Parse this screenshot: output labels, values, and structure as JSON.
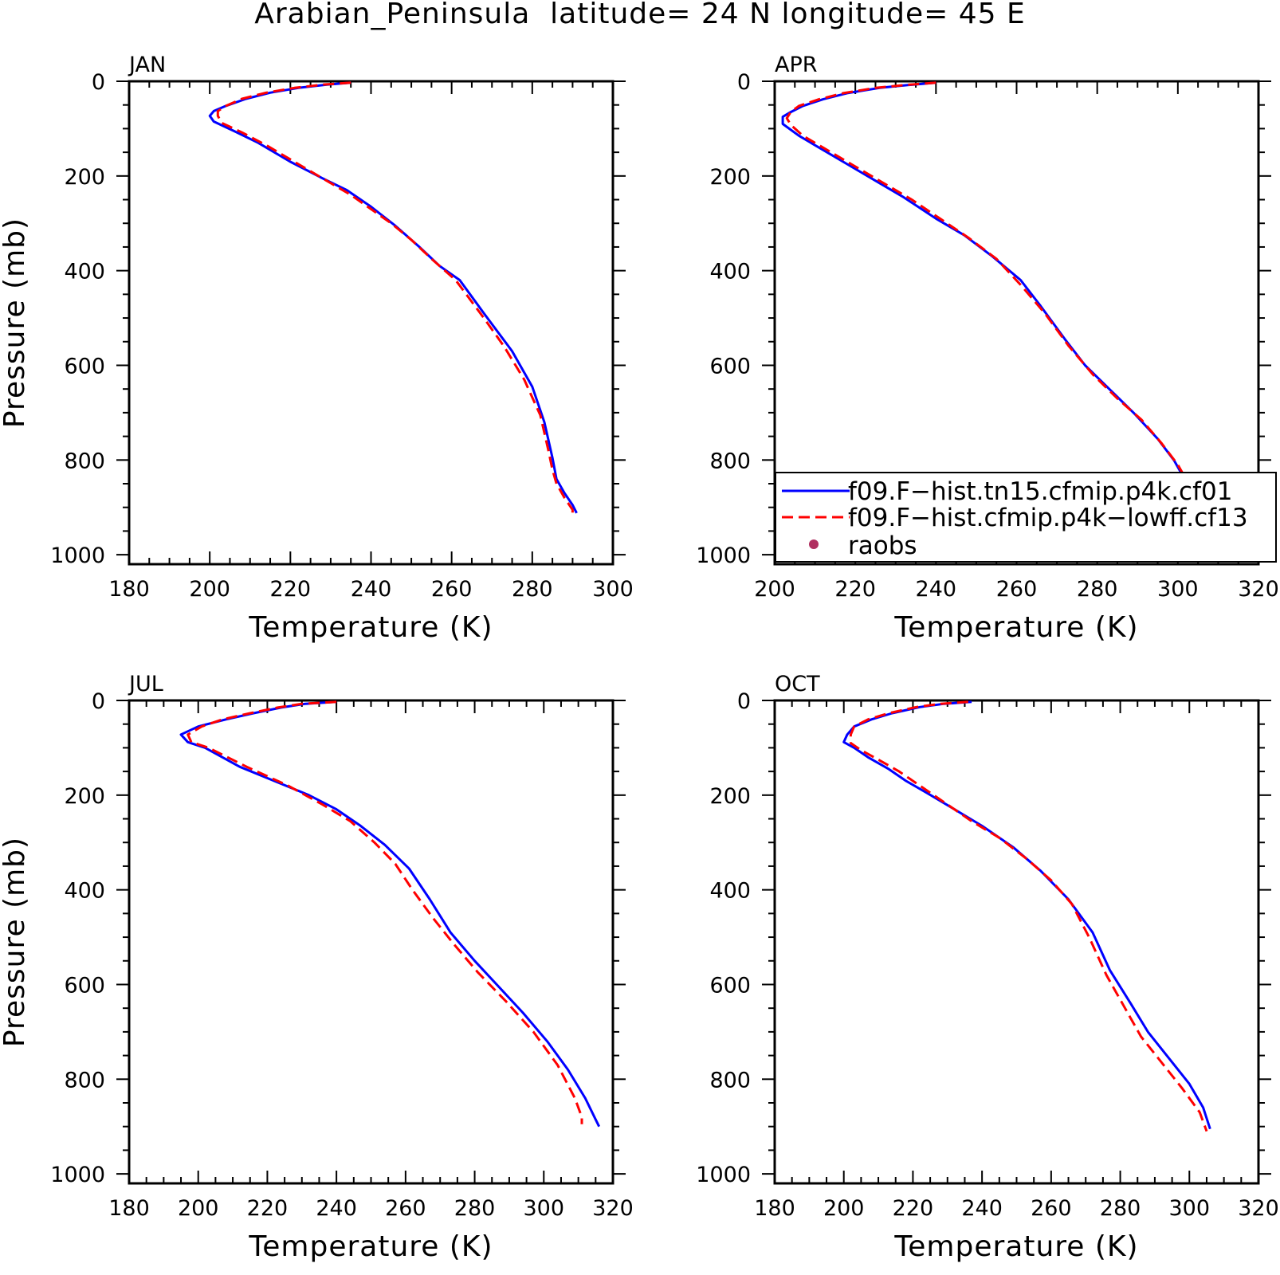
{
  "figure": {
    "title": "Arabian_Peninsula  latitude= 24 N longitude= 45 E",
    "colors": {
      "axes": "#000000",
      "series1": "#0000ff",
      "series2": "#ff0000",
      "raobs": "#b03060"
    }
  },
  "legend": {
    "placement": "inside APR panel, lower-right",
    "entries": [
      {
        "label": "f09.F−hist.tn15.cfmip.p4k.cf01",
        "style": "solid",
        "color": "#0000ff"
      },
      {
        "label": "f09.F−hist.cfmip.p4k−lowff.cf13",
        "style": "dashed",
        "color": "#ff0000"
      },
      {
        "label": "raobs",
        "style": "marker",
        "color": "#b03060"
      }
    ]
  },
  "chart_data": [
    {
      "type": "line",
      "panel_label": "JAN",
      "xlabel": "Temperature (K)",
      "ylabel": "Pressure (mb)",
      "xlim": [
        180,
        300
      ],
      "ylim": [
        1020,
        0
      ],
      "xticks": [
        180,
        200,
        220,
        240,
        260,
        280,
        300
      ],
      "yticks": [
        0,
        200,
        400,
        600,
        800,
        1000
      ],
      "grid": false,
      "series": [
        {
          "name": "f09.F−hist.tn15.cfmip.p4k.cf01",
          "style": "solid",
          "color": "#0000ff",
          "points": [
            [
              235,
              3
            ],
            [
              229,
              7
            ],
            [
              222,
              14
            ],
            [
              215,
              24
            ],
            [
              209,
              37
            ],
            [
              204,
              52
            ],
            [
              201,
              63
            ],
            [
              200,
              73
            ],
            [
              201,
              85
            ],
            [
              206,
              105
            ],
            [
              212,
              130
            ],
            [
              220,
              170
            ],
            [
              228,
              205
            ],
            [
              234,
              230
            ],
            [
              240,
              265
            ],
            [
              246,
              305
            ],
            [
              252,
              350
            ],
            [
              257,
              390
            ],
            [
              262,
              420
            ],
            [
              268,
              490
            ],
            [
              275,
              570
            ],
            [
              280,
              645
            ],
            [
              283,
              720
            ],
            [
              285,
              795
            ],
            [
              286,
              840
            ],
            [
              288,
              870
            ],
            [
              290,
              895
            ],
            [
              291,
              912
            ]
          ]
        },
        {
          "name": "f09.F−hist.cfmip.p4k−lowff.cf13",
          "style": "dashed",
          "color": "#ff0000",
          "points": [
            [
              235,
              3
            ],
            [
              228,
              7
            ],
            [
              221,
              14
            ],
            [
              214,
              24
            ],
            [
              208,
              37
            ],
            [
              204,
              52
            ],
            [
              202,
              63
            ],
            [
              202,
              73
            ],
            [
              203,
              88
            ],
            [
              208,
              108
            ],
            [
              214,
              135
            ],
            [
              222,
              175
            ],
            [
              229,
              210
            ],
            [
              235,
              240
            ],
            [
              240,
              270
            ],
            [
              245,
              300
            ],
            [
              250,
              335
            ],
            [
              255,
              375
            ],
            [
              261,
              420
            ],
            [
              268,
              500
            ],
            [
              273,
              560
            ],
            [
              278,
              630
            ],
            [
              282,
              705
            ],
            [
              284,
              780
            ],
            [
              285,
              820
            ],
            [
              286,
              850
            ],
            [
              288,
              880
            ],
            [
              290,
              905
            ],
            [
              290,
              915
            ]
          ]
        }
      ]
    },
    {
      "type": "line",
      "panel_label": "APR",
      "xlabel": "Temperature (K)",
      "ylabel": "",
      "xlim": [
        200,
        320
      ],
      "ylim": [
        1020,
        0
      ],
      "xticks": [
        200,
        220,
        240,
        260,
        280,
        300,
        320
      ],
      "yticks": [
        0,
        200,
        400,
        600,
        800,
        1000
      ],
      "grid": false,
      "series": [
        {
          "name": "f09.F−hist.tn15.cfmip.p4k.cf01",
          "style": "solid",
          "color": "#0000ff",
          "points": [
            [
              240,
              3
            ],
            [
              233,
              8
            ],
            [
              226,
              14
            ],
            [
              218,
              25
            ],
            [
              212,
              38
            ],
            [
              207,
              52
            ],
            [
              204,
              65
            ],
            [
              202,
              75
            ],
            [
              202,
              90
            ],
            [
              206,
              115
            ],
            [
              211,
              140
            ],
            [
              218,
              175
            ],
            [
              225,
              210
            ],
            [
              232,
              245
            ],
            [
              240,
              290
            ],
            [
              247,
              325
            ],
            [
              254,
              370
            ],
            [
              261,
              420
            ],
            [
              266,
              475
            ],
            [
              272,
              545
            ],
            [
              277,
              600
            ],
            [
              283,
              650
            ],
            [
              289,
              700
            ],
            [
              295,
              755
            ],
            [
              299,
              800
            ],
            [
              302,
              845
            ],
            [
              305,
              880
            ],
            [
              307,
              905
            ]
          ]
        },
        {
          "name": "f09.F−hist.cfmip.p4k−lowff.cf13",
          "style": "dashed",
          "color": "#ff0000",
          "points": [
            [
              240,
              3
            ],
            [
              232,
              8
            ],
            [
              225,
              14
            ],
            [
              217,
              25
            ],
            [
              211,
              38
            ],
            [
              206,
              52
            ],
            [
              204,
              65
            ],
            [
              203,
              78
            ],
            [
              204,
              92
            ],
            [
              207,
              115
            ],
            [
              212,
              140
            ],
            [
              219,
              175
            ],
            [
              226,
              210
            ],
            [
              234,
              250
            ],
            [
              241,
              290
            ],
            [
              248,
              330
            ],
            [
              255,
              375
            ],
            [
              261,
              430
            ],
            [
              267,
              490
            ],
            [
              273,
              560
            ],
            [
              279,
              620
            ],
            [
              285,
              670
            ],
            [
              291,
              715
            ],
            [
              296,
              765
            ],
            [
              300,
              810
            ],
            [
              303,
              855
            ],
            [
              305,
              885
            ],
            [
              306,
              900
            ]
          ]
        }
      ]
    },
    {
      "type": "line",
      "panel_label": "JUL",
      "xlabel": "Temperature (K)",
      "ylabel": "Pressure (mb)",
      "xlim": [
        180,
        320
      ],
      "ylim": [
        1020,
        0
      ],
      "xticks": [
        180,
        200,
        220,
        240,
        260,
        280,
        300,
        320
      ],
      "yticks": [
        0,
        200,
        400,
        600,
        800,
        1000
      ],
      "grid": false,
      "series": [
        {
          "name": "f09.F−hist.tn15.cfmip.p4k.cf01",
          "style": "solid",
          "color": "#0000ff",
          "points": [
            [
              240,
              3
            ],
            [
              231,
              7
            ],
            [
              224,
              15
            ],
            [
              216,
              27
            ],
            [
              208,
              40
            ],
            [
              200,
              55
            ],
            [
              195,
              72
            ],
            [
              197,
              88
            ],
            [
              202,
              100
            ],
            [
              212,
              140
            ],
            [
              222,
              170
            ],
            [
              232,
              200
            ],
            [
              240,
              230
            ],
            [
              247,
              265
            ],
            [
              254,
              305
            ],
            [
              261,
              355
            ],
            [
              267,
              420
            ],
            [
              273,
              490
            ],
            [
              280,
              550
            ],
            [
              287,
              605
            ],
            [
              294,
              660
            ],
            [
              301,
              720
            ],
            [
              307,
              780
            ],
            [
              312,
              840
            ],
            [
              315,
              885
            ],
            [
              316,
              900
            ]
          ]
        },
        {
          "name": "f09.F−hist.cfmip.p4k−lowff.cf13",
          "style": "dashed",
          "color": "#ff0000",
          "points": [
            [
              240,
              3
            ],
            [
              230,
              7
            ],
            [
              223,
              15
            ],
            [
              215,
              27
            ],
            [
              207,
              40
            ],
            [
              201,
              55
            ],
            [
              197,
              72
            ],
            [
              198,
              88
            ],
            [
              203,
              100
            ],
            [
              214,
              140
            ],
            [
              226,
              180
            ],
            [
              236,
              220
            ],
            [
              244,
              255
            ],
            [
              251,
              300
            ],
            [
              257,
              345
            ],
            [
              262,
              400
            ],
            [
              268,
              460
            ],
            [
              274,
              515
            ],
            [
              281,
              575
            ],
            [
              289,
              635
            ],
            [
              297,
              700
            ],
            [
              304,
              770
            ],
            [
              309,
              840
            ],
            [
              311,
              880
            ],
            [
              311,
              895
            ]
          ]
        }
      ]
    },
    {
      "type": "line",
      "panel_label": "OCT",
      "xlabel": "Temperature (K)",
      "ylabel": "",
      "xlim": [
        180,
        320
      ],
      "ylim": [
        1020,
        0
      ],
      "xticks": [
        180,
        200,
        220,
        240,
        260,
        280,
        300,
        320
      ],
      "yticks": [
        0,
        200,
        400,
        600,
        800,
        1000
      ],
      "grid": false,
      "series": [
        {
          "name": "f09.F−hist.tn15.cfmip.p4k.cf01",
          "style": "solid",
          "color": "#0000ff",
          "points": [
            [
              237,
              3
            ],
            [
              229,
              7
            ],
            [
              222,
              14
            ],
            [
              214,
              27
            ],
            [
              208,
              40
            ],
            [
              203,
              55
            ],
            [
              201,
              72
            ],
            [
              200,
              88
            ],
            [
              203,
              100
            ],
            [
              207,
              120
            ],
            [
              213,
              145
            ],
            [
              218,
              170
            ],
            [
              224,
              195
            ],
            [
              232,
              230
            ],
            [
              240,
              265
            ],
            [
              249,
              310
            ],
            [
              257,
              360
            ],
            [
              265,
              420
            ],
            [
              272,
              490
            ],
            [
              277,
              570
            ],
            [
              283,
              640
            ],
            [
              288,
              700
            ],
            [
              294,
              755
            ],
            [
              300,
              810
            ],
            [
              304,
              860
            ],
            [
              306,
              905
            ]
          ]
        },
        {
          "name": "f09.F−hist.cfmip.p4k−lowff.cf13",
          "style": "dashed",
          "color": "#ff0000",
          "points": [
            [
              236,
              3
            ],
            [
              228,
              7
            ],
            [
              221,
              14
            ],
            [
              213,
              27
            ],
            [
              207,
              40
            ],
            [
              203,
              55
            ],
            [
              202,
              72
            ],
            [
              202,
              90
            ],
            [
              205,
              105
            ],
            [
              210,
              125
            ],
            [
              216,
              150
            ],
            [
              222,
              180
            ],
            [
              229,
              215
            ],
            [
              237,
              255
            ],
            [
              245,
              290
            ],
            [
              253,
              335
            ],
            [
              260,
              380
            ],
            [
              266,
              430
            ],
            [
              271,
              500
            ],
            [
              276,
              580
            ],
            [
              281,
              645
            ],
            [
              286,
              710
            ],
            [
              292,
              765
            ],
            [
              298,
              820
            ],
            [
              303,
              870
            ],
            [
              305,
              910
            ]
          ]
        }
      ]
    }
  ]
}
